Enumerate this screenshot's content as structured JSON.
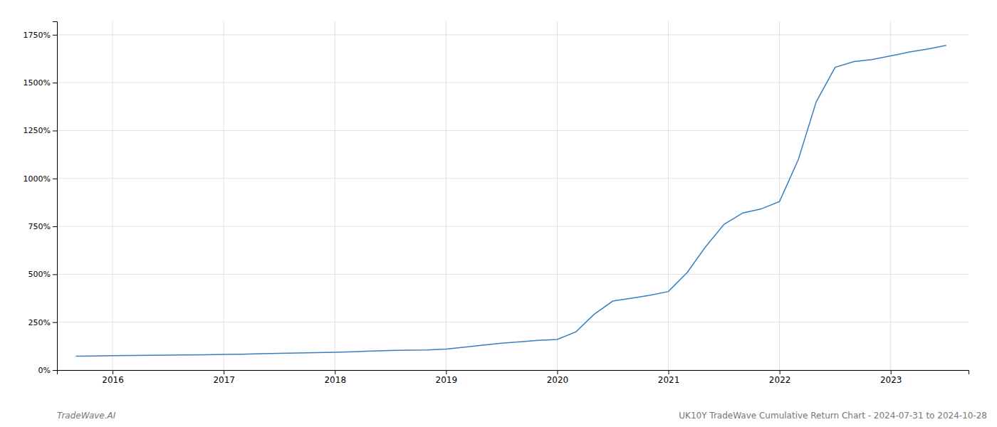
{
  "chart_data": {
    "type": "line",
    "annotations": [
      "TradeWave.AI",
      "UK10Y TradeWave Cumulative Return Chart - 2024-07-31 to 2024-10-28"
    ],
    "x": [
      2015.67,
      2015.83,
      2016.0,
      2016.17,
      2016.33,
      2016.5,
      2016.67,
      2016.83,
      2017.0,
      2017.17,
      2017.33,
      2017.5,
      2017.67,
      2017.83,
      2018.0,
      2018.17,
      2018.33,
      2018.5,
      2018.67,
      2018.83,
      2019.0,
      2019.17,
      2019.33,
      2019.5,
      2019.67,
      2019.83,
      2020.0,
      2020.17,
      2020.33,
      2020.5,
      2020.67,
      2020.83,
      2021.0,
      2021.17,
      2021.33,
      2021.5,
      2021.67,
      2021.83,
      2022.0,
      2022.17,
      2022.33,
      2022.5,
      2022.67,
      2022.83,
      2023.0,
      2023.17,
      2023.33,
      2023.5
    ],
    "values": [
      72,
      73,
      75,
      76,
      77,
      78,
      79,
      80,
      82,
      83,
      85,
      87,
      89,
      91,
      93,
      96,
      99,
      102,
      104,
      105,
      110,
      120,
      130,
      140,
      148,
      155,
      160,
      200,
      290,
      360,
      375,
      390,
      410,
      510,
      640,
      760,
      820,
      840,
      880,
      1100,
      1400,
      1580,
      1610,
      1620,
      1640,
      1660,
      1675,
      1695
    ],
    "color": "#3a7ebf",
    "xlim": [
      2015.5,
      2023.7
    ],
    "xticks": [
      2016,
      2017,
      2018,
      2019,
      2020,
      2021,
      2022,
      2023
    ],
    "ylim": [
      0,
      1820
    ],
    "yticks": [
      {
        "value": 0,
        "label": "0%"
      },
      {
        "value": 250,
        "label": "250%"
      },
      {
        "value": 500,
        "label": "500%"
      },
      {
        "value": 750,
        "label": "750%"
      },
      {
        "value": 1000,
        "label": "1000%"
      },
      {
        "value": 1250,
        "label": "1250%"
      },
      {
        "value": 1500,
        "label": "1500%"
      },
      {
        "value": 1750,
        "label": "1750%"
      }
    ],
    "grid": true
  }
}
